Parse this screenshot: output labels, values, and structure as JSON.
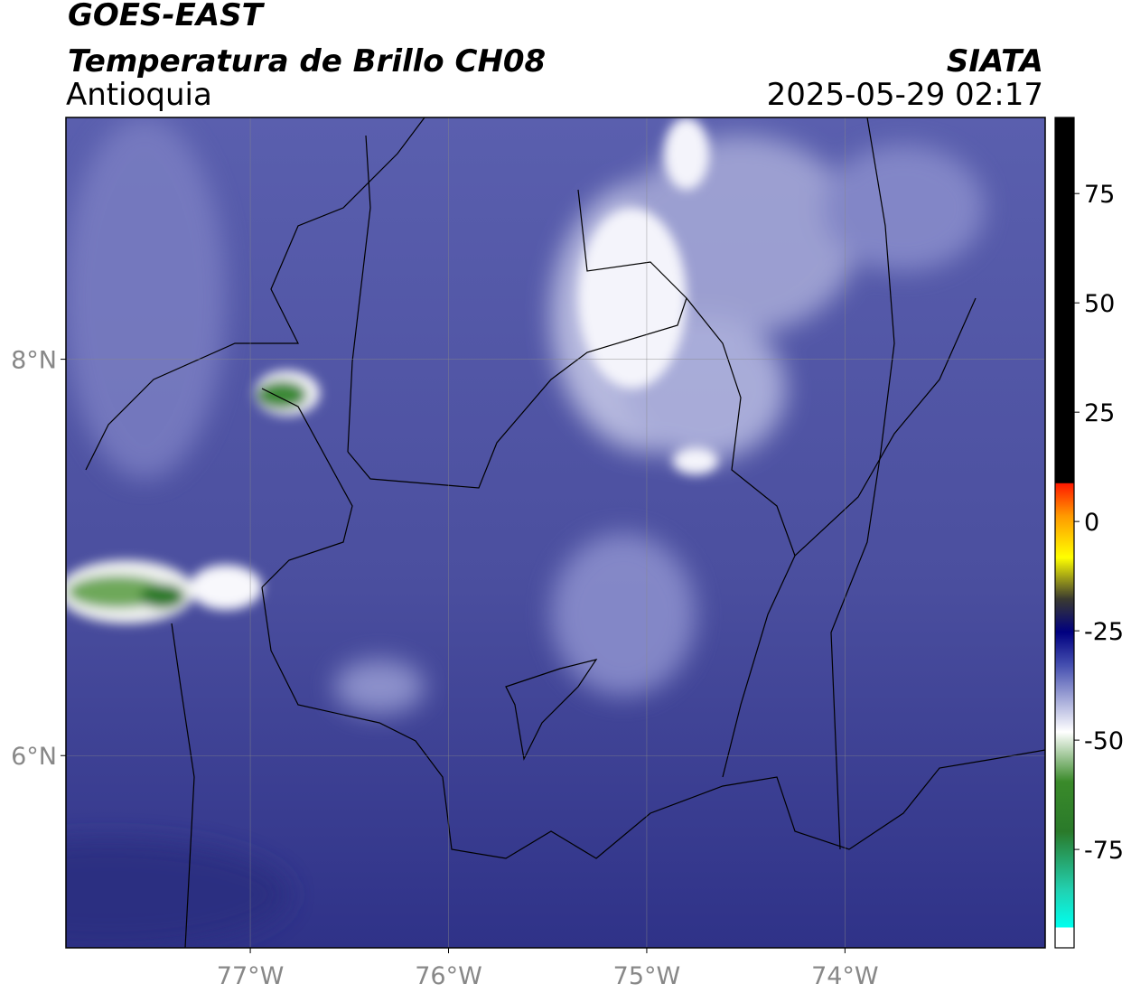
{
  "header": {
    "source": "GOES-EAST",
    "title": "Temperatura de Brillo CH08",
    "region": "Antioquia",
    "brand": "SIATA",
    "datetime": "2025-05-29 02:17"
  },
  "map": {
    "xlim": [
      -77.93,
      -72.99
    ],
    "ylim": [
      5.03,
      9.22
    ],
    "xticks": [
      {
        "value": -77,
        "label": "77°W"
      },
      {
        "value": -76,
        "label": "76°W"
      },
      {
        "value": -75,
        "label": "75°W"
      },
      {
        "value": -74,
        "label": "74°W"
      }
    ],
    "yticks": [
      {
        "value": 6,
        "label": "6°N"
      },
      {
        "value": 8,
        "label": "8°N"
      }
    ]
  },
  "colorbar": {
    "lim": [
      -97.5,
      92.4
    ],
    "ticks": [
      -75,
      -50,
      -25,
      0,
      25,
      50,
      75
    ]
  }
}
